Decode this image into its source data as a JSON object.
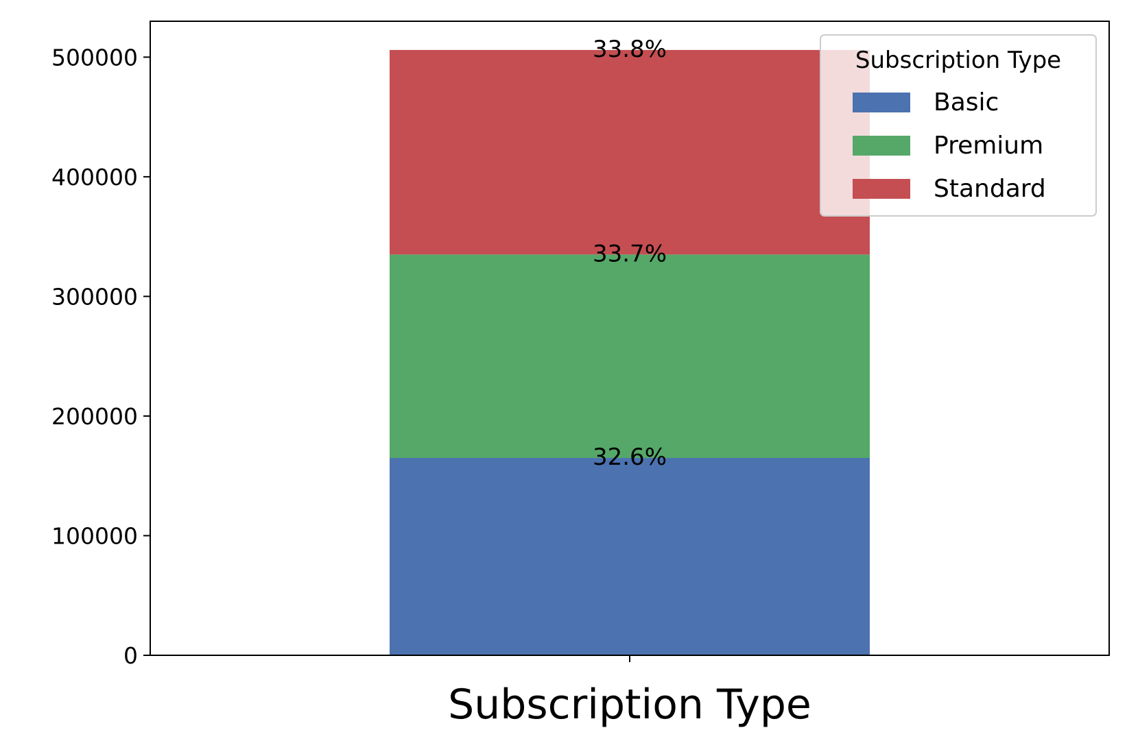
{
  "chart_data": {
    "type": "bar",
    "stacked": true,
    "categories": [
      ""
    ],
    "xlabel": "Subscription Type",
    "ylabel": "",
    "ylim": [
      0,
      530000
    ],
    "yticks": [
      0,
      100000,
      200000,
      300000,
      400000,
      500000
    ],
    "ytick_labels": [
      "0",
      "100000",
      "200000",
      "300000",
      "400000",
      "500000"
    ],
    "grid": false,
    "legend": {
      "title": "Subscription Type",
      "placement": "top-right"
    },
    "series": [
      {
        "name": "Basic",
        "values": [
          165000
        ],
        "color": "#4c72b0",
        "label": "32.6%"
      },
      {
        "name": "Premium",
        "values": [
          170000
        ],
        "color": "#55a868",
        "label": "33.7%"
      },
      {
        "name": "Standard",
        "values": [
          171000
        ],
        "color": "#c44e52",
        "label": "33.8%"
      }
    ]
  }
}
